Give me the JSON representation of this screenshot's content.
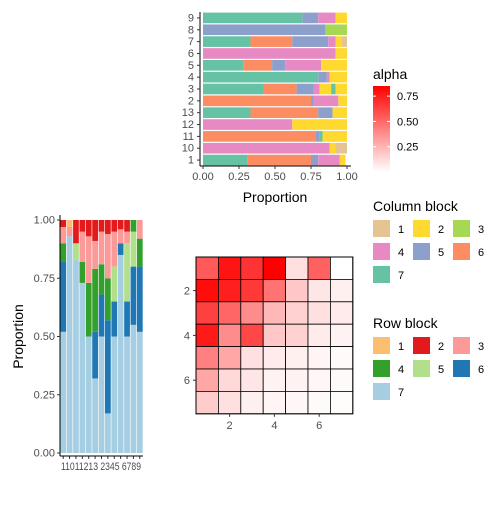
{
  "chart_data": [
    {
      "type": "bar",
      "orientation": "horizontal",
      "stacked": true,
      "xlabel": "Proportion",
      "xlim": [
        0,
        1
      ],
      "xticks": [
        "0.00",
        "0.25",
        "0.50",
        "0.75",
        "1.00"
      ],
      "categories": [
        "1",
        "10",
        "11",
        "12",
        "13",
        "2",
        "3",
        "4",
        "5",
        "6",
        "7",
        "8",
        "9"
      ],
      "series_colors": {
        "1": "#E5C494",
        "2": "#FFD92F",
        "3": "#A6D854",
        "4": "#E78AC3",
        "5": "#8DA0CB",
        "6": "#FC8D62",
        "7": "#66C2A5"
      },
      "rows": [
        {
          "label": "1",
          "parts": [
            [
              "7",
              0.31
            ],
            [
              "6",
              0.44
            ],
            [
              "5",
              0.05
            ],
            [
              "4",
              0.15
            ],
            [
              "2",
              0.04
            ]
          ]
        },
        {
          "label": "10",
          "parts": [
            [
              "4",
              0.88
            ],
            [
              "2",
              0.04
            ],
            [
              "1",
              0.08
            ]
          ]
        },
        {
          "label": "11",
          "parts": [
            [
              "6",
              0.78
            ],
            [
              "5",
              0.03
            ],
            [
              "7",
              0.02
            ],
            [
              "2",
              0.17
            ]
          ]
        },
        {
          "label": "12",
          "parts": [
            [
              "4",
              0.62
            ],
            [
              "2",
              0.38
            ]
          ]
        },
        {
          "label": "13",
          "parts": [
            [
              "7",
              0.33
            ],
            [
              "6",
              0.47
            ],
            [
              "5",
              0.1
            ],
            [
              "2",
              0.1
            ]
          ]
        },
        {
          "label": "2",
          "parts": [
            [
              "6",
              0.75
            ],
            [
              "5",
              0.02
            ],
            [
              "4",
              0.17
            ],
            [
              "2",
              0.06
            ]
          ]
        },
        {
          "label": "3",
          "parts": [
            [
              "7",
              0.42
            ],
            [
              "6",
              0.23
            ],
            [
              "5",
              0.12
            ],
            [
              "4",
              0.04
            ],
            [
              "2",
              0.08
            ],
            [
              "7",
              0.03
            ],
            [
              "2",
              0.08
            ]
          ]
        },
        {
          "label": "4",
          "parts": [
            [
              "7",
              0.8
            ],
            [
              "5",
              0.06
            ],
            [
              "4",
              0.02
            ],
            [
              "2",
              0.12
            ]
          ]
        },
        {
          "label": "5",
          "parts": [
            [
              "7",
              0.28
            ],
            [
              "6",
              0.2
            ],
            [
              "5",
              0.09
            ],
            [
              "4",
              0.25
            ],
            [
              "2",
              0.18
            ]
          ]
        },
        {
          "label": "6",
          "parts": [
            [
              "4",
              0.92
            ],
            [
              "2",
              0.08
            ]
          ]
        },
        {
          "label": "7",
          "parts": [
            [
              "7",
              0.33
            ],
            [
              "6",
              0.29
            ],
            [
              "5",
              0.25
            ],
            [
              "4",
              0.05
            ],
            [
              "2",
              0.04
            ],
            [
              "1",
              0.04
            ]
          ]
        },
        {
          "label": "8",
          "parts": [
            [
              "5",
              0.85
            ],
            [
              "3",
              0.15
            ]
          ]
        },
        {
          "label": "9",
          "parts": [
            [
              "7",
              0.69
            ],
            [
              "5",
              0.11
            ],
            [
              "4",
              0.12
            ],
            [
              "2",
              0.08
            ]
          ]
        }
      ]
    },
    {
      "type": "bar",
      "orientation": "vertical",
      "stacked": true,
      "ylabel": "Proportion",
      "ylim": [
        0,
        1
      ],
      "yticks": [
        "0.00",
        "0.25",
        "0.50",
        "0.75",
        "1.00"
      ],
      "categories": [
        "1",
        "10",
        "11",
        "12",
        "13",
        "2",
        "3",
        "4",
        "5",
        "6",
        "7",
        "8",
        "9"
      ],
      "tick_text": "11011213 2345 6789",
      "series_colors": {
        "1": "#FDBF6F",
        "2": "#E31A1C",
        "3": "#FB9A99",
        "4": "#33A02C",
        "5": "#B2DF8A",
        "6": "#1F78B4",
        "7": "#A6CEE3"
      },
      "columns": [
        {
          "label": "1",
          "parts": [
            [
              "7",
              0.52
            ],
            [
              "6",
              0.3
            ],
            [
              "4",
              0.08
            ],
            [
              "3",
              0.07
            ],
            [
              "2",
              0.03
            ]
          ]
        },
        {
          "label": "10",
          "parts": [
            [
              "7",
              0.93
            ],
            [
              "3",
              0.04
            ],
            [
              "1",
              0.03
            ]
          ]
        },
        {
          "label": "11",
          "parts": [
            [
              "7",
              0.83
            ],
            [
              "5",
              0.07
            ],
            [
              "2",
              0.1
            ]
          ]
        },
        {
          "label": "12",
          "parts": [
            [
              "7",
              0.73
            ],
            [
              "4",
              0.09
            ],
            [
              "3",
              0.13
            ],
            [
              "2",
              0.05
            ]
          ]
        },
        {
          "label": "13",
          "parts": [
            [
              "7",
              0.5
            ],
            [
              "4",
              0.23
            ],
            [
              "3",
              0.2
            ],
            [
              "2",
              0.07
            ]
          ]
        },
        {
          "label": "2",
          "parts": [
            [
              "7",
              0.32
            ],
            [
              "6",
              0.2
            ],
            [
              "4",
              0.27
            ],
            [
              "3",
              0.12
            ],
            [
              "2",
              0.09
            ]
          ]
        },
        {
          "label": "3",
          "parts": [
            [
              "7",
              0.5
            ],
            [
              "6",
              0.18
            ],
            [
              "4",
              0.13
            ],
            [
              "3",
              0.14
            ],
            [
              "2",
              0.05
            ]
          ]
        },
        {
          "label": "4",
          "parts": [
            [
              "7",
              0.17
            ],
            [
              "6",
              0.4
            ],
            [
              "4",
              0.18
            ],
            [
              "3",
              0.19
            ],
            [
              "2",
              0.06
            ]
          ]
        },
        {
          "label": "5",
          "parts": [
            [
              "7",
              0.5
            ],
            [
              "6",
              0.15
            ],
            [
              "5",
              0.15
            ],
            [
              "3",
              0.15
            ],
            [
              "2",
              0.05
            ]
          ]
        },
        {
          "label": "6",
          "parts": [
            [
              "7",
              0.85
            ],
            [
              "6",
              0.05
            ],
            [
              "3",
              0.06
            ],
            [
              "2",
              0.04
            ]
          ]
        },
        {
          "label": "7",
          "parts": [
            [
              "7",
              0.5
            ],
            [
              "6",
              0.15
            ],
            [
              "5",
              0.25
            ],
            [
              "3",
              0.05
            ],
            [
              "2",
              0.05
            ]
          ]
        },
        {
          "label": "8",
          "parts": [
            [
              "7",
              0.55
            ],
            [
              "6",
              0.25
            ],
            [
              "5",
              0.15
            ],
            [
              "4",
              0.05
            ]
          ]
        },
        {
          "label": "9",
          "parts": [
            [
              "7",
              0.52
            ],
            [
              "6",
              0.28
            ],
            [
              "4",
              0.12
            ],
            [
              "3",
              0.08
            ]
          ]
        }
      ]
    },
    {
      "type": "heatmap",
      "rows": 7,
      "cols": 7,
      "xticks": [
        "2",
        "4",
        "6"
      ],
      "yticks": [
        "2",
        "4",
        "6"
      ],
      "color_low": "#FFFFFF",
      "color_high": "#FF0000",
      "values": [
        [
          0.65,
          0.92,
          0.8,
          1.0,
          0.12,
          0.62,
          0.0
        ],
        [
          0.95,
          0.88,
          0.78,
          0.55,
          0.22,
          0.1,
          0.06
        ],
        [
          0.75,
          0.6,
          0.45,
          0.28,
          0.18,
          0.12,
          0.08
        ],
        [
          0.9,
          0.45,
          0.72,
          0.22,
          0.18,
          0.08,
          0.05
        ],
        [
          0.5,
          0.35,
          0.12,
          0.08,
          0.06,
          0.04,
          0.02
        ],
        [
          0.35,
          0.15,
          0.1,
          0.05,
          0.05,
          0.03,
          0.02
        ],
        [
          0.2,
          0.12,
          0.06,
          0.04,
          0.03,
          0.02,
          0.01
        ]
      ]
    }
  ],
  "legends": {
    "alpha": {
      "title": "alpha",
      "labels": [
        "0.75",
        "0.50",
        "0.25"
      ],
      "values": [
        0.75,
        0.5,
        0.25
      ],
      "range": [
        0,
        0.85
      ]
    },
    "column_block": {
      "title": "Column block",
      "items": [
        {
          "label": "1",
          "color": "#E5C494"
        },
        {
          "label": "2",
          "color": "#FFD92F"
        },
        {
          "label": "3",
          "color": "#A6D854"
        },
        {
          "label": "4",
          "color": "#E78AC3"
        },
        {
          "label": "5",
          "color": "#8DA0CB"
        },
        {
          "label": "6",
          "color": "#FC8D62"
        },
        {
          "label": "7",
          "color": "#66C2A5"
        }
      ]
    },
    "row_block": {
      "title": "Row block",
      "items": [
        {
          "label": "1",
          "color": "#FDBF6F"
        },
        {
          "label": "2",
          "color": "#E31A1C"
        },
        {
          "label": "3",
          "color": "#FB9A99"
        },
        {
          "label": "4",
          "color": "#33A02C"
        },
        {
          "label": "5",
          "color": "#B2DF8A"
        },
        {
          "label": "6",
          "color": "#1F78B4"
        },
        {
          "label": "7",
          "color": "#A6CEE3"
        }
      ]
    }
  }
}
